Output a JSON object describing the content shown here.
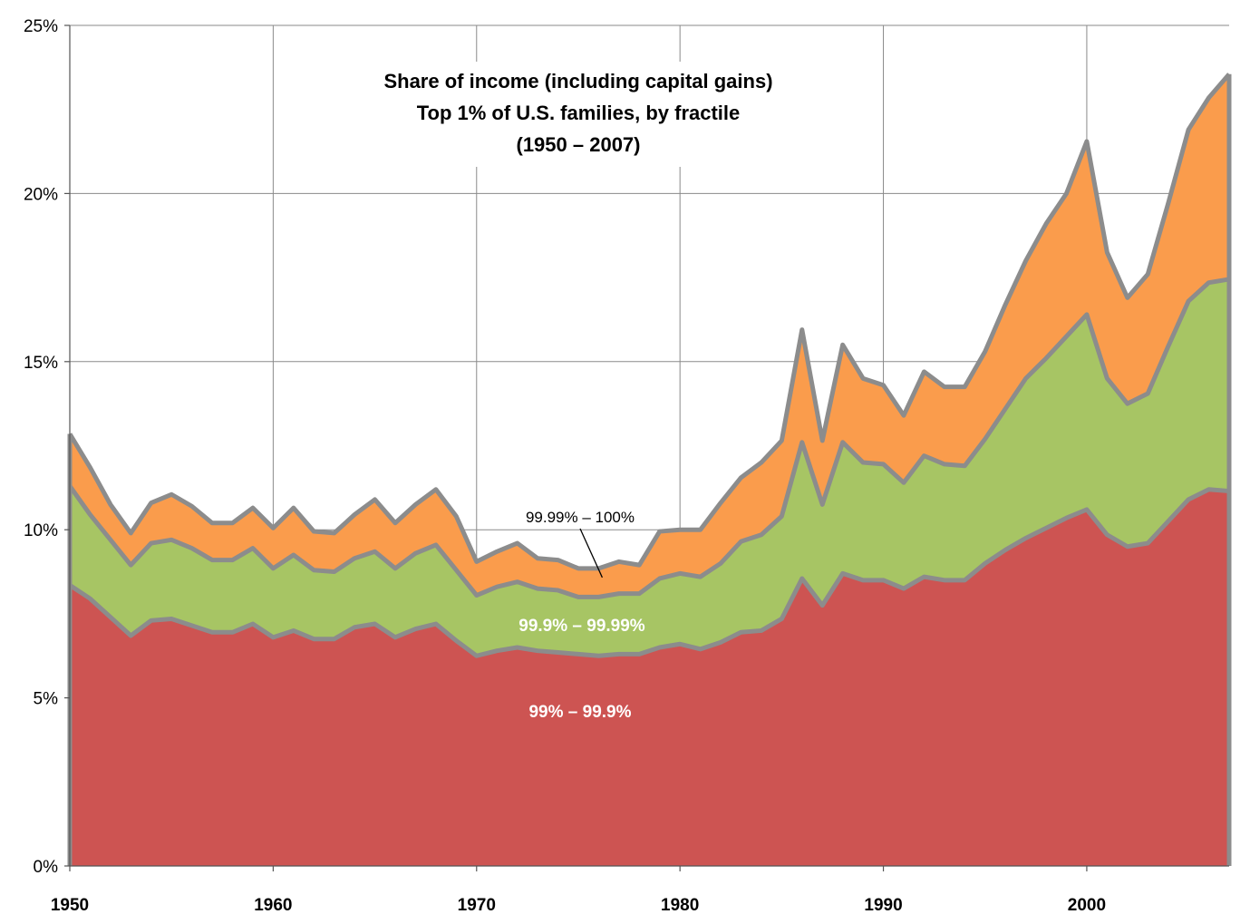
{
  "chart_data": {
    "type": "area",
    "stacked": true,
    "title_lines": [
      "Share of income (including capital gains)",
      "Top 1% of U.S. families, by fractile",
      "(1950 – 2007)"
    ],
    "xlabel": "",
    "ylabel": "",
    "xlim": [
      1950,
      2007
    ],
    "ylim": [
      0,
      25
    ],
    "x_ticks": [
      1950,
      1960,
      1970,
      1980,
      1990,
      2000
    ],
    "y_ticks": [
      0,
      5,
      10,
      15,
      20,
      25
    ],
    "y_tick_labels": [
      "0%",
      "5%",
      "10%",
      "15%",
      "20%",
      "25%"
    ],
    "grid": "vertical and horizontal",
    "x": [
      1950,
      1951,
      1952,
      1953,
      1954,
      1955,
      1956,
      1957,
      1958,
      1959,
      1960,
      1961,
      1962,
      1963,
      1964,
      1965,
      1966,
      1967,
      1968,
      1969,
      1970,
      1971,
      1972,
      1973,
      1974,
      1975,
      1976,
      1977,
      1978,
      1979,
      1980,
      1981,
      1982,
      1983,
      1984,
      1985,
      1986,
      1987,
      1988,
      1989,
      1990,
      1991,
      1992,
      1993,
      1994,
      1995,
      1996,
      1997,
      1998,
      1999,
      2000,
      2001,
      2002,
      2003,
      2004,
      2005,
      2006,
      2007
    ],
    "cumulative_tops": [
      [
        8.35,
        7.95,
        7.4,
        6.85,
        7.3,
        7.35,
        7.15,
        6.95,
        6.95,
        7.2,
        6.8,
        7.0,
        6.75,
        6.75,
        7.1,
        7.2,
        6.8,
        7.05,
        7.2,
        6.7,
        6.25,
        6.4,
        6.5,
        6.4,
        6.35,
        6.3,
        6.25,
        6.3,
        6.3,
        6.5,
        6.6,
        6.45,
        6.65,
        6.95,
        7.0,
        7.35,
        8.55,
        7.75,
        8.7,
        8.5,
        8.5,
        8.25,
        8.6,
        8.5,
        8.5,
        9.0,
        9.4,
        9.75,
        10.05,
        10.35,
        10.6,
        9.85,
        9.5,
        9.6,
        10.25,
        10.9,
        11.2,
        11.15
      ],
      [
        11.3,
        10.45,
        9.7,
        8.95,
        9.6,
        9.7,
        9.45,
        9.1,
        9.1,
        9.45,
        8.85,
        9.25,
        8.8,
        8.75,
        9.15,
        9.35,
        8.85,
        9.3,
        9.55,
        8.8,
        8.05,
        8.3,
        8.45,
        8.25,
        8.2,
        8.0,
        8.0,
        8.1,
        8.1,
        8.55,
        8.7,
        8.6,
        9.0,
        9.65,
        9.85,
        10.4,
        12.6,
        10.75,
        12.6,
        12.0,
        11.95,
        11.4,
        12.2,
        11.95,
        11.9,
        12.7,
        13.6,
        14.5,
        15.1,
        15.75,
        16.4,
        14.5,
        13.75,
        14.05,
        15.45,
        16.8,
        17.35,
        17.45
      ],
      [
        12.85,
        11.85,
        10.75,
        9.9,
        10.8,
        11.05,
        10.7,
        10.2,
        10.2,
        10.65,
        10.05,
        10.65,
        9.95,
        9.9,
        10.45,
        10.9,
        10.2,
        10.75,
        11.2,
        10.4,
        9.05,
        9.35,
        9.6,
        9.15,
        9.1,
        8.85,
        8.85,
        9.05,
        8.95,
        9.95,
        10.0,
        10.0,
        10.8,
        11.55,
        12.0,
        12.65,
        15.95,
        12.65,
        15.5,
        14.5,
        14.3,
        13.4,
        14.7,
        14.25,
        14.25,
        15.3,
        16.7,
        18.0,
        19.1,
        20.0,
        21.55,
        18.25,
        16.9,
        17.6,
        19.7,
        21.9,
        22.85,
        23.55
      ]
    ],
    "series": [
      {
        "name": "99% – 99.9%",
        "color": "#cd5452",
        "text_color": "#ffffff"
      },
      {
        "name": "99.9% – 99.99%",
        "color": "#a7c564",
        "text_color": "#ffffff"
      },
      {
        "name": "99.99% – 100%",
        "color": "#fa9c4c",
        "text_color": "#000000"
      }
    ],
    "outline_color": "#8c8c8c",
    "annotation_pointer_year": 1976
  }
}
